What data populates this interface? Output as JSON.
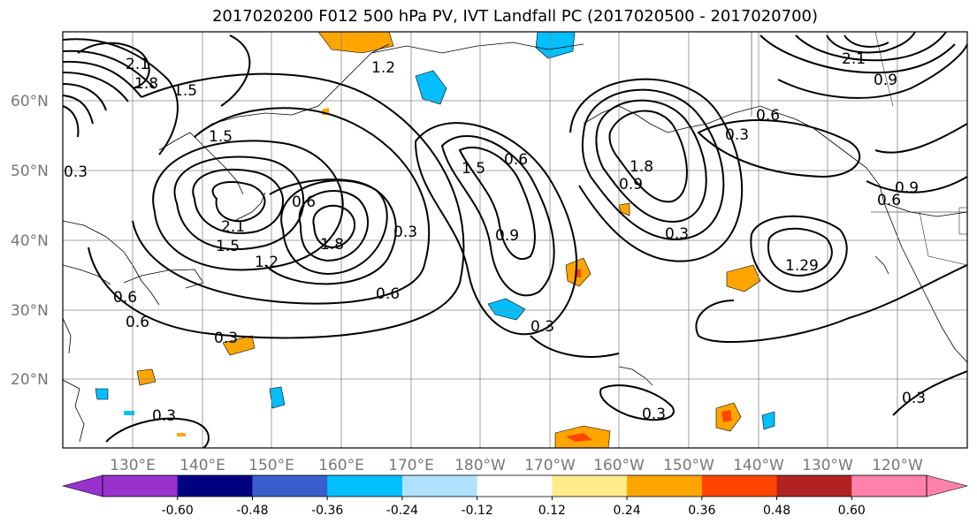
{
  "title": "2017020200 F012 500 hPa PV, IVT Landfall PC (2017020500 - 2017020700)",
  "lat_labels": [
    "60°N",
    "50°N",
    "40°N",
    "30°N",
    "20°N"
  ],
  "lon_labels": [
    "130°E",
    "140°E",
    "150°E",
    "160°E",
    "170°E",
    "180°W",
    "170°W",
    "160°W",
    "150°W",
    "140°W",
    "130°W",
    "120°W"
  ],
  "colorbar": {
    "ticks": [
      "-0.60",
      "-0.48",
      "-0.36",
      "-0.24",
      "-0.12",
      "0.12",
      "0.24",
      "0.36",
      "0.48",
      "0.60"
    ],
    "colors": [
      "#9932cc",
      "#000080",
      "#3a5fcd",
      "#00bfff",
      "#b0e2ff",
      "#ffffff",
      "#ffec8b",
      "#ffa500",
      "#ff4500",
      "#b22222",
      "#ff82ab",
      "#ff82ab"
    ]
  },
  "contour_labels": [
    "2.1",
    "1.8",
    "1.5",
    "1.5",
    "0.3",
    "2.1",
    "1.5",
    "1.2",
    "0.6",
    "1.8",
    "0.3",
    "0.6",
    "0.6",
    "0.6",
    "0.3",
    "1.2",
    "1.5",
    "0.6",
    "0.9",
    "1.8",
    "0.9",
    "0.3",
    "0.6",
    "0.3",
    "1.29",
    "0.3",
    "0.3",
    "2.1",
    "0.9",
    "0.9",
    "0.6",
    "0.3",
    "0.3"
  ]
}
